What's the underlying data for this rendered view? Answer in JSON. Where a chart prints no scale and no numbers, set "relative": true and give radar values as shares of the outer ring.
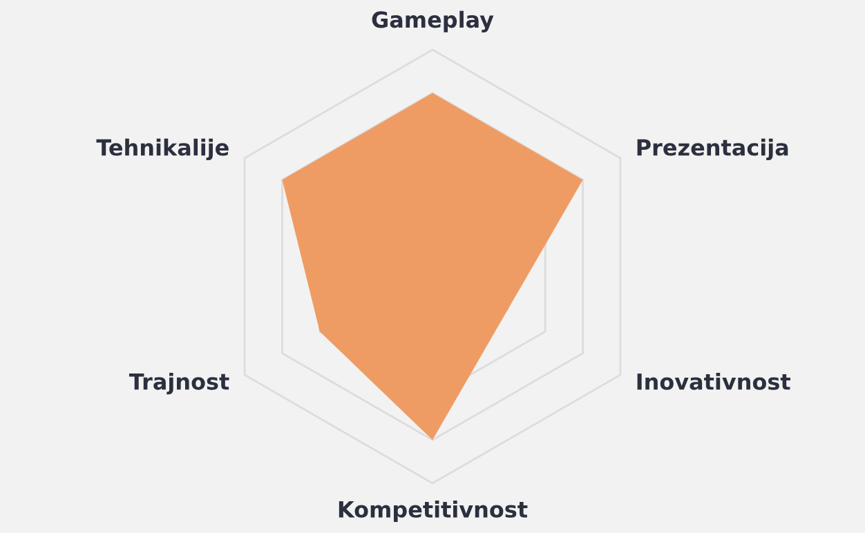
{
  "chart_data": {
    "type": "radar",
    "relative": true,
    "categories": [
      "Gameplay",
      "Prezentacija",
      "Inovativnost",
      "Kompetitivnost",
      "Trajnost",
      "Tehnikalije"
    ],
    "series": [
      {
        "color": "#ef9c64",
        "values": [
          0.8,
          0.8,
          0.4,
          0.8,
          0.6,
          0.8
        ]
      }
    ],
    "grid": true
  }
}
